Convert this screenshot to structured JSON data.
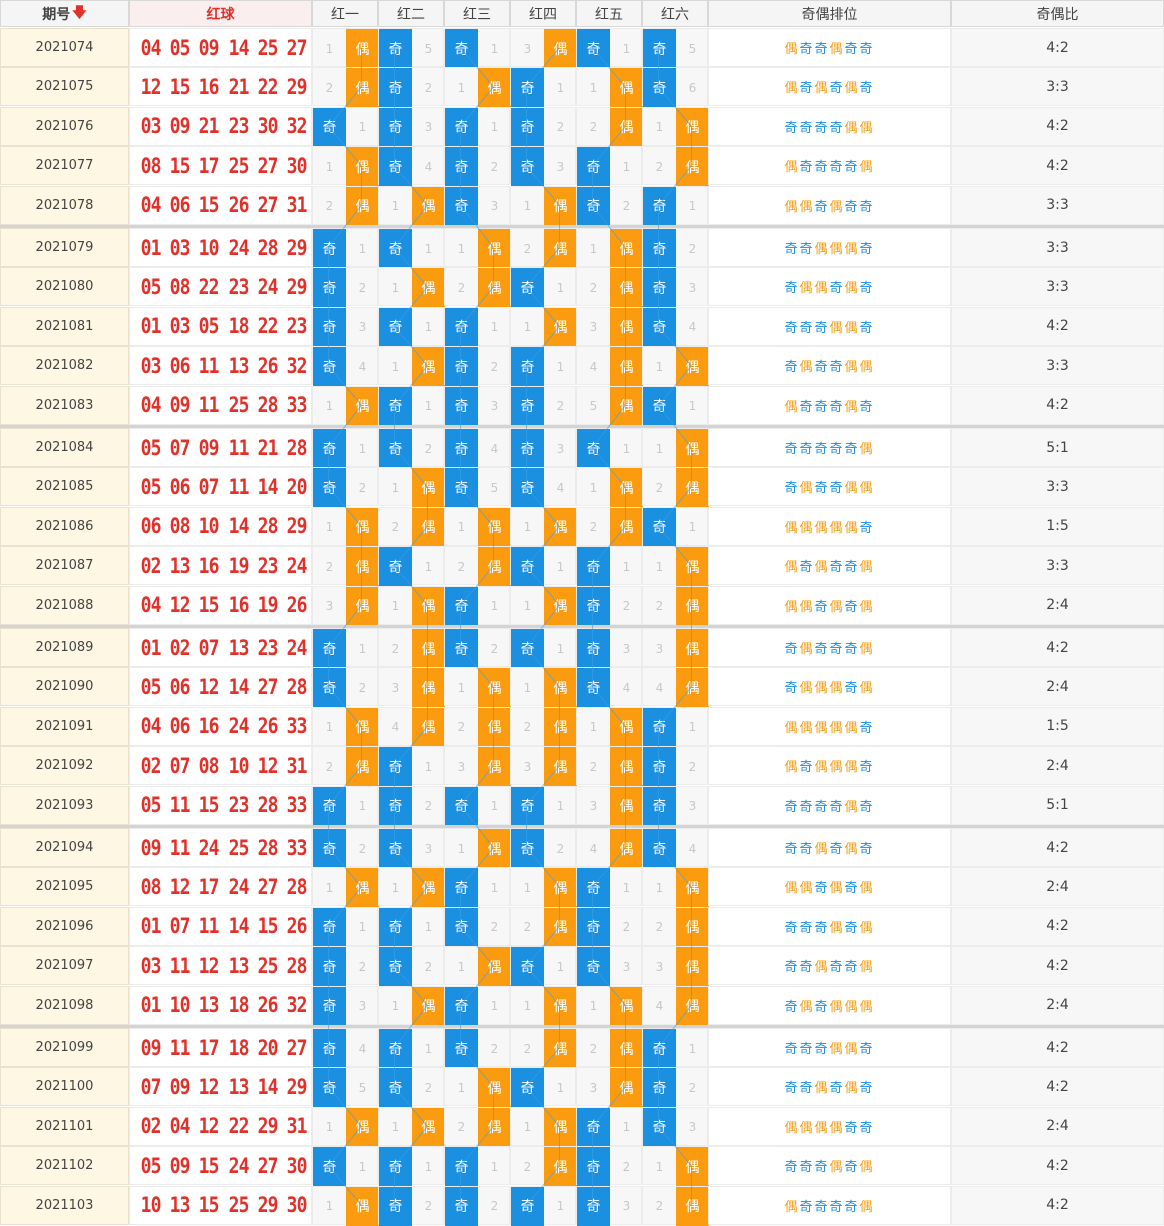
{
  "header": {
    "issue_label": "期号",
    "sort_icon": "arrow-down-icon",
    "balls_label": "红球",
    "positions": [
      "红一",
      "红二",
      "红三",
      "红四",
      "红五",
      "红六"
    ],
    "pattern_label": "奇偶排位",
    "ratio_label": "奇偶比"
  },
  "labels": {
    "odd": "奇",
    "even": "偶"
  },
  "colors": {
    "red_ball": "#e0322b",
    "odd": "#1b8fe0",
    "even": "#fb9b10",
    "issue_bg": "#fdf7e4"
  },
  "rows": [
    {
      "issue": "2021074",
      "balls": [
        "04",
        "05",
        "09",
        "14",
        "25",
        "27"
      ],
      "miss": [
        "1",
        "5",
        "1",
        "3",
        "1",
        "5"
      ],
      "pattern": "偶奇奇偶奇奇",
      "ratio": "4:2"
    },
    {
      "issue": "2021075",
      "balls": [
        "12",
        "15",
        "16",
        "21",
        "22",
        "29"
      ],
      "miss": [
        "2",
        "2",
        "1",
        "1",
        "1",
        "6"
      ],
      "pattern": "偶奇偶奇偶奇",
      "ratio": "3:3"
    },
    {
      "issue": "2021076",
      "balls": [
        "03",
        "09",
        "21",
        "23",
        "30",
        "32"
      ],
      "miss": [
        "1",
        "3",
        "1",
        "2",
        "2",
        "1"
      ],
      "pattern": "奇奇奇奇偶偶",
      "ratio": "4:2"
    },
    {
      "issue": "2021077",
      "balls": [
        "08",
        "15",
        "17",
        "25",
        "27",
        "30"
      ],
      "miss": [
        "1",
        "4",
        "2",
        "3",
        "1",
        "2"
      ],
      "pattern": "偶奇奇奇奇偶",
      "ratio": "4:2"
    },
    {
      "issue": "2021078",
      "balls": [
        "04",
        "06",
        "15",
        "26",
        "27",
        "31"
      ],
      "miss": [
        "2",
        "1",
        "3",
        "1",
        "2",
        "1"
      ],
      "pattern": "偶偶奇偶奇奇",
      "ratio": "3:3"
    },
    {
      "issue": "2021079",
      "balls": [
        "01",
        "03",
        "10",
        "24",
        "28",
        "29"
      ],
      "miss": [
        "1",
        "1",
        "1",
        "2",
        "1",
        "2"
      ],
      "pattern": "奇奇偶偶偶奇",
      "ratio": "3:3"
    },
    {
      "issue": "2021080",
      "balls": [
        "05",
        "08",
        "22",
        "23",
        "24",
        "29"
      ],
      "miss": [
        "2",
        "1",
        "2",
        "1",
        "2",
        "3"
      ],
      "pattern": "奇偶偶奇偶奇",
      "ratio": "3:3"
    },
    {
      "issue": "2021081",
      "balls": [
        "01",
        "03",
        "05",
        "18",
        "22",
        "23"
      ],
      "miss": [
        "3",
        "1",
        "1",
        "1",
        "3",
        "4"
      ],
      "pattern": "奇奇奇偶偶奇",
      "ratio": "4:2"
    },
    {
      "issue": "2021082",
      "balls": [
        "03",
        "06",
        "11",
        "13",
        "26",
        "32"
      ],
      "miss": [
        "4",
        "1",
        "2",
        "1",
        "4",
        "1"
      ],
      "pattern": "奇偶奇奇偶偶",
      "ratio": "3:3"
    },
    {
      "issue": "2021083",
      "balls": [
        "04",
        "09",
        "11",
        "25",
        "28",
        "33"
      ],
      "miss": [
        "1",
        "1",
        "3",
        "2",
        "5",
        "1"
      ],
      "pattern": "偶奇奇奇偶奇",
      "ratio": "4:2"
    },
    {
      "issue": "2021084",
      "balls": [
        "05",
        "07",
        "09",
        "11",
        "21",
        "28"
      ],
      "miss": [
        "1",
        "2",
        "4",
        "3",
        "1",
        "1"
      ],
      "pattern": "奇奇奇奇奇偶",
      "ratio": "5:1"
    },
    {
      "issue": "2021085",
      "balls": [
        "05",
        "06",
        "07",
        "11",
        "14",
        "20"
      ],
      "miss": [
        "2",
        "1",
        "5",
        "4",
        "1",
        "2"
      ],
      "pattern": "奇偶奇奇偶偶",
      "ratio": "3:3"
    },
    {
      "issue": "2021086",
      "balls": [
        "06",
        "08",
        "10",
        "14",
        "28",
        "29"
      ],
      "miss": [
        "1",
        "2",
        "1",
        "1",
        "2",
        "1"
      ],
      "pattern": "偶偶偶偶偶奇",
      "ratio": "1:5"
    },
    {
      "issue": "2021087",
      "balls": [
        "02",
        "13",
        "16",
        "19",
        "23",
        "24"
      ],
      "miss": [
        "2",
        "1",
        "2",
        "1",
        "1",
        "1"
      ],
      "pattern": "偶奇偶奇奇偶",
      "ratio": "3:3"
    },
    {
      "issue": "2021088",
      "balls": [
        "04",
        "12",
        "15",
        "16",
        "19",
        "26"
      ],
      "miss": [
        "3",
        "1",
        "1",
        "1",
        "2",
        "2"
      ],
      "pattern": "偶偶奇偶奇偶",
      "ratio": "2:4"
    },
    {
      "issue": "2021089",
      "balls": [
        "01",
        "02",
        "07",
        "13",
        "23",
        "24"
      ],
      "miss": [
        "1",
        "2",
        "2",
        "1",
        "3",
        "3"
      ],
      "pattern": "奇偶奇奇奇偶",
      "ratio": "4:2"
    },
    {
      "issue": "2021090",
      "balls": [
        "05",
        "06",
        "12",
        "14",
        "27",
        "28"
      ],
      "miss": [
        "2",
        "3",
        "1",
        "1",
        "4",
        "4"
      ],
      "pattern": "奇偶偶偶奇偶",
      "ratio": "2:4"
    },
    {
      "issue": "2021091",
      "balls": [
        "04",
        "06",
        "16",
        "24",
        "26",
        "33"
      ],
      "miss": [
        "1",
        "4",
        "2",
        "2",
        "1",
        "1"
      ],
      "pattern": "偶偶偶偶偶奇",
      "ratio": "1:5"
    },
    {
      "issue": "2021092",
      "balls": [
        "02",
        "07",
        "08",
        "10",
        "12",
        "31"
      ],
      "miss": [
        "2",
        "1",
        "3",
        "3",
        "2",
        "2"
      ],
      "pattern": "偶奇偶偶偶奇",
      "ratio": "2:4"
    },
    {
      "issue": "2021093",
      "balls": [
        "05",
        "11",
        "15",
        "23",
        "28",
        "33"
      ],
      "miss": [
        "1",
        "2",
        "1",
        "1",
        "3",
        "3"
      ],
      "pattern": "奇奇奇奇偶奇",
      "ratio": "5:1"
    },
    {
      "issue": "2021094",
      "balls": [
        "09",
        "11",
        "24",
        "25",
        "28",
        "33"
      ],
      "miss": [
        "2",
        "3",
        "1",
        "2",
        "4",
        "4"
      ],
      "pattern": "奇奇偶奇偶奇",
      "ratio": "4:2"
    },
    {
      "issue": "2021095",
      "balls": [
        "08",
        "12",
        "17",
        "24",
        "27",
        "28"
      ],
      "miss": [
        "1",
        "1",
        "1",
        "1",
        "1",
        "1"
      ],
      "pattern": "偶偶奇偶奇偶",
      "ratio": "2:4"
    },
    {
      "issue": "2021096",
      "balls": [
        "01",
        "07",
        "11",
        "14",
        "15",
        "26"
      ],
      "miss": [
        "1",
        "1",
        "2",
        "2",
        "2",
        "2"
      ],
      "pattern": "奇奇奇偶奇偶",
      "ratio": "4:2"
    },
    {
      "issue": "2021097",
      "balls": [
        "03",
        "11",
        "12",
        "13",
        "25",
        "28"
      ],
      "miss": [
        "2",
        "2",
        "1",
        "1",
        "3",
        "3"
      ],
      "pattern": "奇奇偶奇奇偶",
      "ratio": "4:2"
    },
    {
      "issue": "2021098",
      "balls": [
        "01",
        "10",
        "13",
        "18",
        "26",
        "32"
      ],
      "miss": [
        "3",
        "1",
        "1",
        "1",
        "1",
        "4"
      ],
      "pattern": "奇偶奇偶偶偶",
      "ratio": "2:4"
    },
    {
      "issue": "2021099",
      "balls": [
        "09",
        "11",
        "17",
        "18",
        "20",
        "27"
      ],
      "miss": [
        "4",
        "1",
        "2",
        "2",
        "2",
        "1"
      ],
      "pattern": "奇奇奇偶偶奇",
      "ratio": "4:2"
    },
    {
      "issue": "2021100",
      "balls": [
        "07",
        "09",
        "12",
        "13",
        "14",
        "29"
      ],
      "miss": [
        "5",
        "2",
        "1",
        "1",
        "3",
        "2"
      ],
      "pattern": "奇奇偶奇偶奇",
      "ratio": "4:2"
    },
    {
      "issue": "2021101",
      "balls": [
        "02",
        "04",
        "12",
        "22",
        "29",
        "31"
      ],
      "miss": [
        "1",
        "1",
        "2",
        "1",
        "1",
        "3"
      ],
      "pattern": "偶偶偶偶奇奇",
      "ratio": "2:4"
    },
    {
      "issue": "2021102",
      "balls": [
        "05",
        "09",
        "15",
        "24",
        "27",
        "30"
      ],
      "miss": [
        "1",
        "1",
        "1",
        "2",
        "2",
        "1"
      ],
      "pattern": "奇奇奇偶奇偶",
      "ratio": "4:2"
    },
    {
      "issue": "2021103",
      "balls": [
        "10",
        "13",
        "15",
        "25",
        "29",
        "30"
      ],
      "miss": [
        "1",
        "2",
        "2",
        "1",
        "3",
        "2"
      ],
      "pattern": "偶奇奇奇奇偶",
      "ratio": "4:2"
    }
  ]
}
